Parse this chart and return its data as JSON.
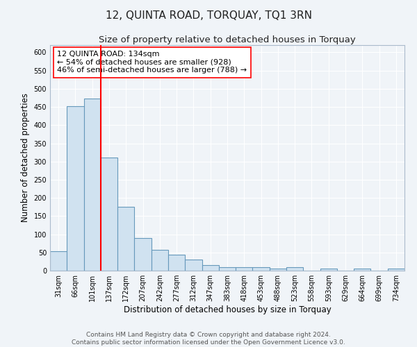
{
  "title": "12, QUINTA ROAD, TORQUAY, TQ1 3RN",
  "subtitle": "Size of property relative to detached houses in Torquay",
  "xlabel": "Distribution of detached houses by size in Torquay",
  "ylabel": "Number of detached properties",
  "categories": [
    "31sqm",
    "66sqm",
    "101sqm",
    "137sqm",
    "172sqm",
    "207sqm",
    "242sqm",
    "277sqm",
    "312sqm",
    "347sqm",
    "383sqm",
    "418sqm",
    "453sqm",
    "488sqm",
    "523sqm",
    "558sqm",
    "593sqm",
    "629sqm",
    "664sqm",
    "699sqm",
    "734sqm"
  ],
  "values": [
    53,
    452,
    474,
    311,
    175,
    90,
    58,
    43,
    30,
    16,
    9,
    9,
    10,
    5,
    9,
    0,
    5,
    0,
    6,
    0,
    5
  ],
  "bar_color": "#d0e2f0",
  "bar_edge_color": "#6699bb",
  "bar_edge_width": 0.8,
  "red_line_x": 2.5,
  "annotation_line1": "12 QUINTA ROAD: 134sqm",
  "annotation_line2": "← 54% of detached houses are smaller (928)",
  "annotation_line3": "46% of semi-detached houses are larger (788) →",
  "ylim": [
    0,
    620
  ],
  "yticks": [
    0,
    50,
    100,
    150,
    200,
    250,
    300,
    350,
    400,
    450,
    500,
    550,
    600
  ],
  "footer_line1": "Contains HM Land Registry data © Crown copyright and database right 2024.",
  "footer_line2": "Contains public sector information licensed under the Open Government Licence v3.0.",
  "background_color": "#f0f4f8",
  "plot_bg_color": "#f0f4f8",
  "grid_color": "#ffffff",
  "title_fontsize": 11,
  "subtitle_fontsize": 9.5,
  "xlabel_fontsize": 8.5,
  "ylabel_fontsize": 8.5,
  "tick_fontsize": 7,
  "footer_fontsize": 6.5,
  "annotation_fontsize": 8
}
